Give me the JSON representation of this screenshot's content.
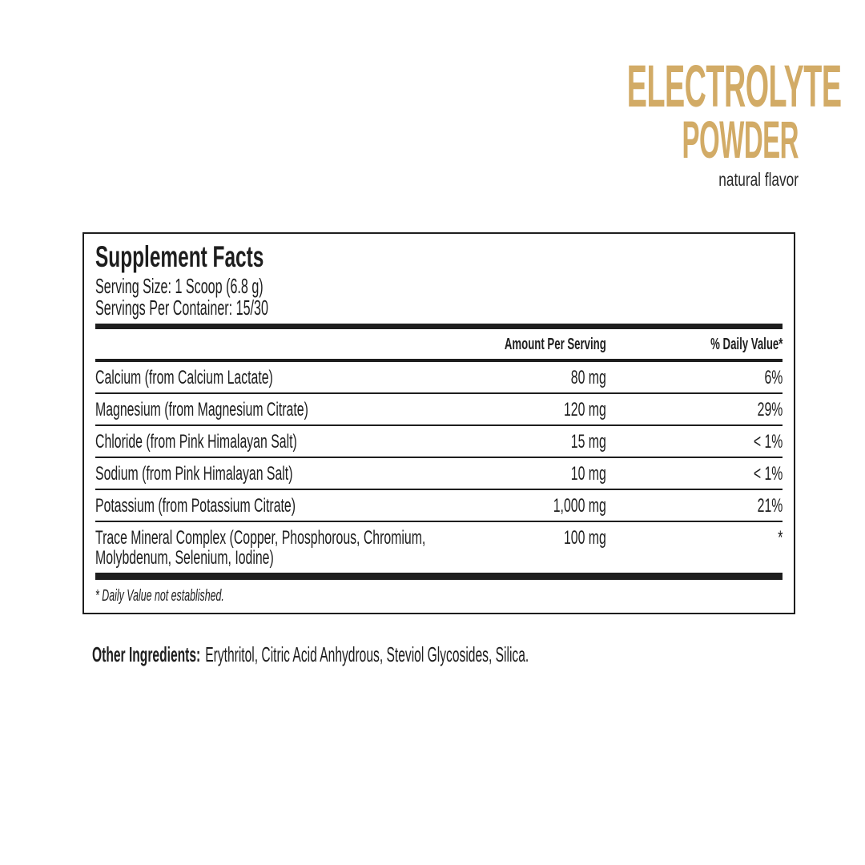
{
  "brand": {
    "title_line1": "ELECTROLYTE",
    "title_line2": "POWDER",
    "subtitle": "natural flavor",
    "accent_color": "#d2ab66",
    "text_color": "#1e1e1e"
  },
  "panel": {
    "title": "Supplement Facts",
    "serving_size": "Serving Size: 1 Scoop (6.8 g)",
    "servings_per_container": "Servings Per Container: 15/30",
    "columns": {
      "amount": "Amount Per Serving",
      "dv": "% Daily Value*"
    },
    "rows": [
      {
        "name": "Calcium (from Calcium Lactate)",
        "amount": "80 mg",
        "dv": "6%"
      },
      {
        "name": "Magnesium (from Magnesium Citrate)",
        "amount": "120 mg",
        "dv": "29%"
      },
      {
        "name": "Chloride (from Pink Himalayan Salt)",
        "amount": "15 mg",
        "dv": "< 1%"
      },
      {
        "name": "Sodium (from Pink Himalayan Salt)",
        "amount": "10 mg",
        "dv": "< 1%"
      },
      {
        "name": "Potassium (from Potassium Citrate)",
        "amount": "1,000 mg",
        "dv": "21%"
      },
      {
        "name": "Trace Mineral Complex  (Copper, Phosphorous, Chromium, Molybdenum, Selenium, Iodine)",
        "amount": "100 mg",
        "dv": "*"
      }
    ],
    "footnote": "* Daily Value not established."
  },
  "other_ingredients": {
    "label": "Other Ingredients:",
    "text": "Erythritol, Citric Acid Anhydrous, Steviol Glycosides, Silica."
  }
}
